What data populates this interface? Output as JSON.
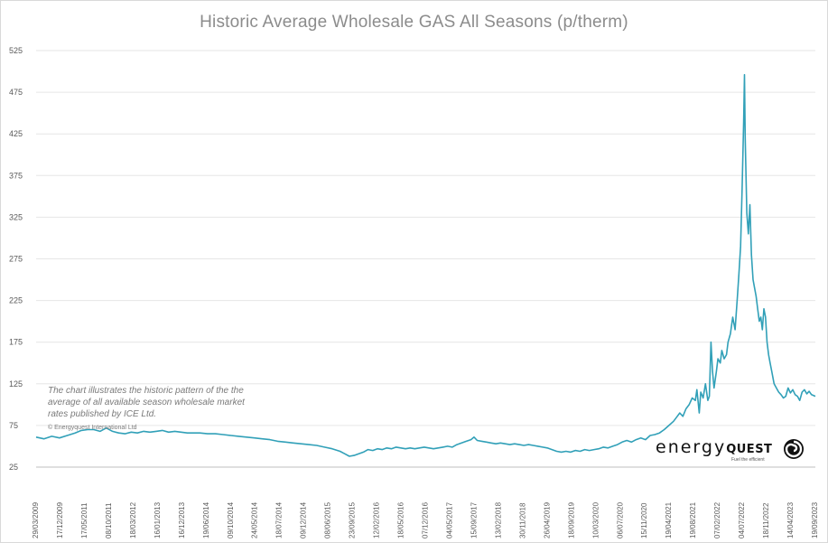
{
  "chart_data": {
    "type": "line",
    "title": "Historic Average Wholesale GAS All Seasons (p/therm)",
    "xlabel": "",
    "ylabel": "",
    "ylim": [
      25,
      525
    ],
    "y_ticks": [
      25,
      75,
      125,
      175,
      225,
      275,
      325,
      375,
      425,
      475,
      525
    ],
    "x_tick_labels": [
      "29/03/2009",
      "17/12/2009",
      "17/05/2011",
      "08/10/2011",
      "18/03/2012",
      "16/01/2013",
      "16/12/2013",
      "19/06/2014",
      "09/10/2014",
      "24/05/2014",
      "18/07/2014",
      "09/12/2014",
      "08/06/2015",
      "23/09/2015",
      "12/02/2016",
      "18/05/2016",
      "07/12/2016",
      "04/05/2017",
      "15/09/2017",
      "13/02/2018",
      "30/11/2018",
      "26/04/2019",
      "18/09/2019",
      "10/03/2020",
      "06/07/2020",
      "15/11/2020",
      "19/04/2021",
      "19/08/2021",
      "07/02/2022",
      "04/07/2022",
      "18/11/2022",
      "14/04/2023",
      "19/09/2023"
    ],
    "grid": true,
    "legend": "none",
    "series": [
      {
        "color": "#31a0b8",
        "x_start": "29/03/2009",
        "x_end": "19/09/2023",
        "points": [
          [
            0,
            61
          ],
          [
            0.01,
            59
          ],
          [
            0.02,
            62
          ],
          [
            0.03,
            60
          ],
          [
            0.04,
            63
          ],
          [
            0.05,
            66
          ],
          [
            0.058,
            69
          ],
          [
            0.066,
            70
          ],
          [
            0.074,
            70
          ],
          [
            0.082,
            68
          ],
          [
            0.09,
            72
          ],
          [
            0.098,
            68
          ],
          [
            0.106,
            66
          ],
          [
            0.114,
            65
          ],
          [
            0.122,
            67
          ],
          [
            0.13,
            66
          ],
          [
            0.138,
            68
          ],
          [
            0.146,
            67
          ],
          [
            0.154,
            68
          ],
          [
            0.162,
            69
          ],
          [
            0.17,
            67
          ],
          [
            0.178,
            68
          ],
          [
            0.186,
            67
          ],
          [
            0.194,
            66
          ],
          [
            0.202,
            66
          ],
          [
            0.21,
            66
          ],
          [
            0.22,
            65
          ],
          [
            0.23,
            65
          ],
          [
            0.24,
            64
          ],
          [
            0.25,
            63
          ],
          [
            0.26,
            62
          ],
          [
            0.27,
            61
          ],
          [
            0.28,
            60
          ],
          [
            0.29,
            59
          ],
          [
            0.3,
            58
          ],
          [
            0.31,
            56
          ],
          [
            0.32,
            55
          ],
          [
            0.33,
            54
          ],
          [
            0.34,
            53
          ],
          [
            0.35,
            52
          ],
          [
            0.36,
            51
          ],
          [
            0.37,
            49
          ],
          [
            0.38,
            47
          ],
          [
            0.39,
            44
          ],
          [
            0.396,
            41
          ],
          [
            0.402,
            38
          ],
          [
            0.408,
            39
          ],
          [
            0.414,
            41
          ],
          [
            0.42,
            43
          ],
          [
            0.426,
            46
          ],
          [
            0.432,
            45
          ],
          [
            0.438,
            47
          ],
          [
            0.444,
            46
          ],
          [
            0.45,
            48
          ],
          [
            0.456,
            47
          ],
          [
            0.462,
            49
          ],
          [
            0.468,
            48
          ],
          [
            0.474,
            47
          ],
          [
            0.48,
            48
          ],
          [
            0.486,
            47
          ],
          [
            0.492,
            48
          ],
          [
            0.498,
            49
          ],
          [
            0.504,
            48
          ],
          [
            0.51,
            47
          ],
          [
            0.516,
            48
          ],
          [
            0.522,
            49
          ],
          [
            0.528,
            50
          ],
          [
            0.534,
            49
          ],
          [
            0.54,
            52
          ],
          [
            0.546,
            54
          ],
          [
            0.552,
            56
          ],
          [
            0.558,
            58
          ],
          [
            0.562,
            61
          ],
          [
            0.566,
            57
          ],
          [
            0.572,
            56
          ],
          [
            0.578,
            55
          ],
          [
            0.584,
            54
          ],
          [
            0.59,
            53
          ],
          [
            0.596,
            54
          ],
          [
            0.602,
            53
          ],
          [
            0.608,
            52
          ],
          [
            0.614,
            53
          ],
          [
            0.62,
            52
          ],
          [
            0.626,
            51
          ],
          [
            0.632,
            52
          ],
          [
            0.638,
            51
          ],
          [
            0.644,
            50
          ],
          [
            0.65,
            49
          ],
          [
            0.656,
            48
          ],
          [
            0.662,
            46
          ],
          [
            0.668,
            44
          ],
          [
            0.674,
            43
          ],
          [
            0.68,
            44
          ],
          [
            0.686,
            43
          ],
          [
            0.692,
            45
          ],
          [
            0.698,
            44
          ],
          [
            0.704,
            46
          ],
          [
            0.71,
            45
          ],
          [
            0.716,
            46
          ],
          [
            0.722,
            47
          ],
          [
            0.728,
            49
          ],
          [
            0.734,
            48
          ],
          [
            0.74,
            50
          ],
          [
            0.746,
            52
          ],
          [
            0.752,
            55
          ],
          [
            0.758,
            57
          ],
          [
            0.764,
            55
          ],
          [
            0.77,
            58
          ],
          [
            0.776,
            60
          ],
          [
            0.782,
            58
          ],
          [
            0.788,
            63
          ],
          [
            0.794,
            64
          ],
          [
            0.8,
            66
          ],
          [
            0.806,
            70
          ],
          [
            0.812,
            75
          ],
          [
            0.818,
            80
          ],
          [
            0.822,
            85
          ],
          [
            0.826,
            90
          ],
          [
            0.83,
            86
          ],
          [
            0.834,
            95
          ],
          [
            0.838,
            100
          ],
          [
            0.842,
            108
          ],
          [
            0.846,
            105
          ],
          [
            0.848,
            118
          ],
          [
            0.851,
            90
          ],
          [
            0.853,
            115
          ],
          [
            0.856,
            108
          ],
          [
            0.859,
            125
          ],
          [
            0.862,
            105
          ],
          [
            0.864,
            110
          ],
          [
            0.866,
            175
          ],
          [
            0.868,
            140
          ],
          [
            0.87,
            120
          ],
          [
            0.873,
            140
          ],
          [
            0.875,
            155
          ],
          [
            0.878,
            150
          ],
          [
            0.88,
            165
          ],
          [
            0.883,
            155
          ],
          [
            0.886,
            160
          ],
          [
            0.888,
            175
          ],
          [
            0.891,
            185
          ],
          [
            0.894,
            205
          ],
          [
            0.897,
            190
          ],
          [
            0.9,
            230
          ],
          [
            0.902,
            258
          ],
          [
            0.904,
            290
          ],
          [
            0.906,
            360
          ],
          [
            0.908,
            440
          ],
          [
            0.909,
            496
          ],
          [
            0.91,
            420
          ],
          [
            0.912,
            330
          ],
          [
            0.914,
            305
          ],
          [
            0.916,
            340
          ],
          [
            0.918,
            280
          ],
          [
            0.92,
            250
          ],
          [
            0.922,
            240
          ],
          [
            0.924,
            230
          ],
          [
            0.926,
            215
          ],
          [
            0.928,
            200
          ],
          [
            0.93,
            205
          ],
          [
            0.932,
            190
          ],
          [
            0.934,
            215
          ],
          [
            0.936,
            205
          ],
          [
            0.938,
            175
          ],
          [
            0.94,
            160
          ],
          [
            0.942,
            150
          ],
          [
            0.944,
            140
          ],
          [
            0.947,
            125
          ],
          [
            0.95,
            120
          ],
          [
            0.953,
            115
          ],
          [
            0.956,
            112
          ],
          [
            0.959,
            108
          ],
          [
            0.962,
            110
          ],
          [
            0.965,
            120
          ],
          [
            0.968,
            114
          ],
          [
            0.971,
            118
          ],
          [
            0.974,
            112
          ],
          [
            0.977,
            110
          ],
          [
            0.98,
            105
          ],
          [
            0.983,
            115
          ],
          [
            0.986,
            118
          ],
          [
            0.989,
            113
          ],
          [
            0.992,
            116
          ],
          [
            0.995,
            112
          ],
          [
            1.0,
            110
          ]
        ]
      }
    ]
  },
  "note": {
    "text": "The chart illustrates the historic pattern of the the average of all available season wholesale market rates published by ICE Ltd.",
    "copyright": "© Energyquest International Ltd"
  },
  "logo": {
    "word": "energy",
    "word_bold": "QUEST",
    "tagline": "Fuel the efficient"
  },
  "colors": {
    "series": "#31a0b8",
    "grid": "#e6e6e6",
    "title": "#8c8c8c"
  }
}
